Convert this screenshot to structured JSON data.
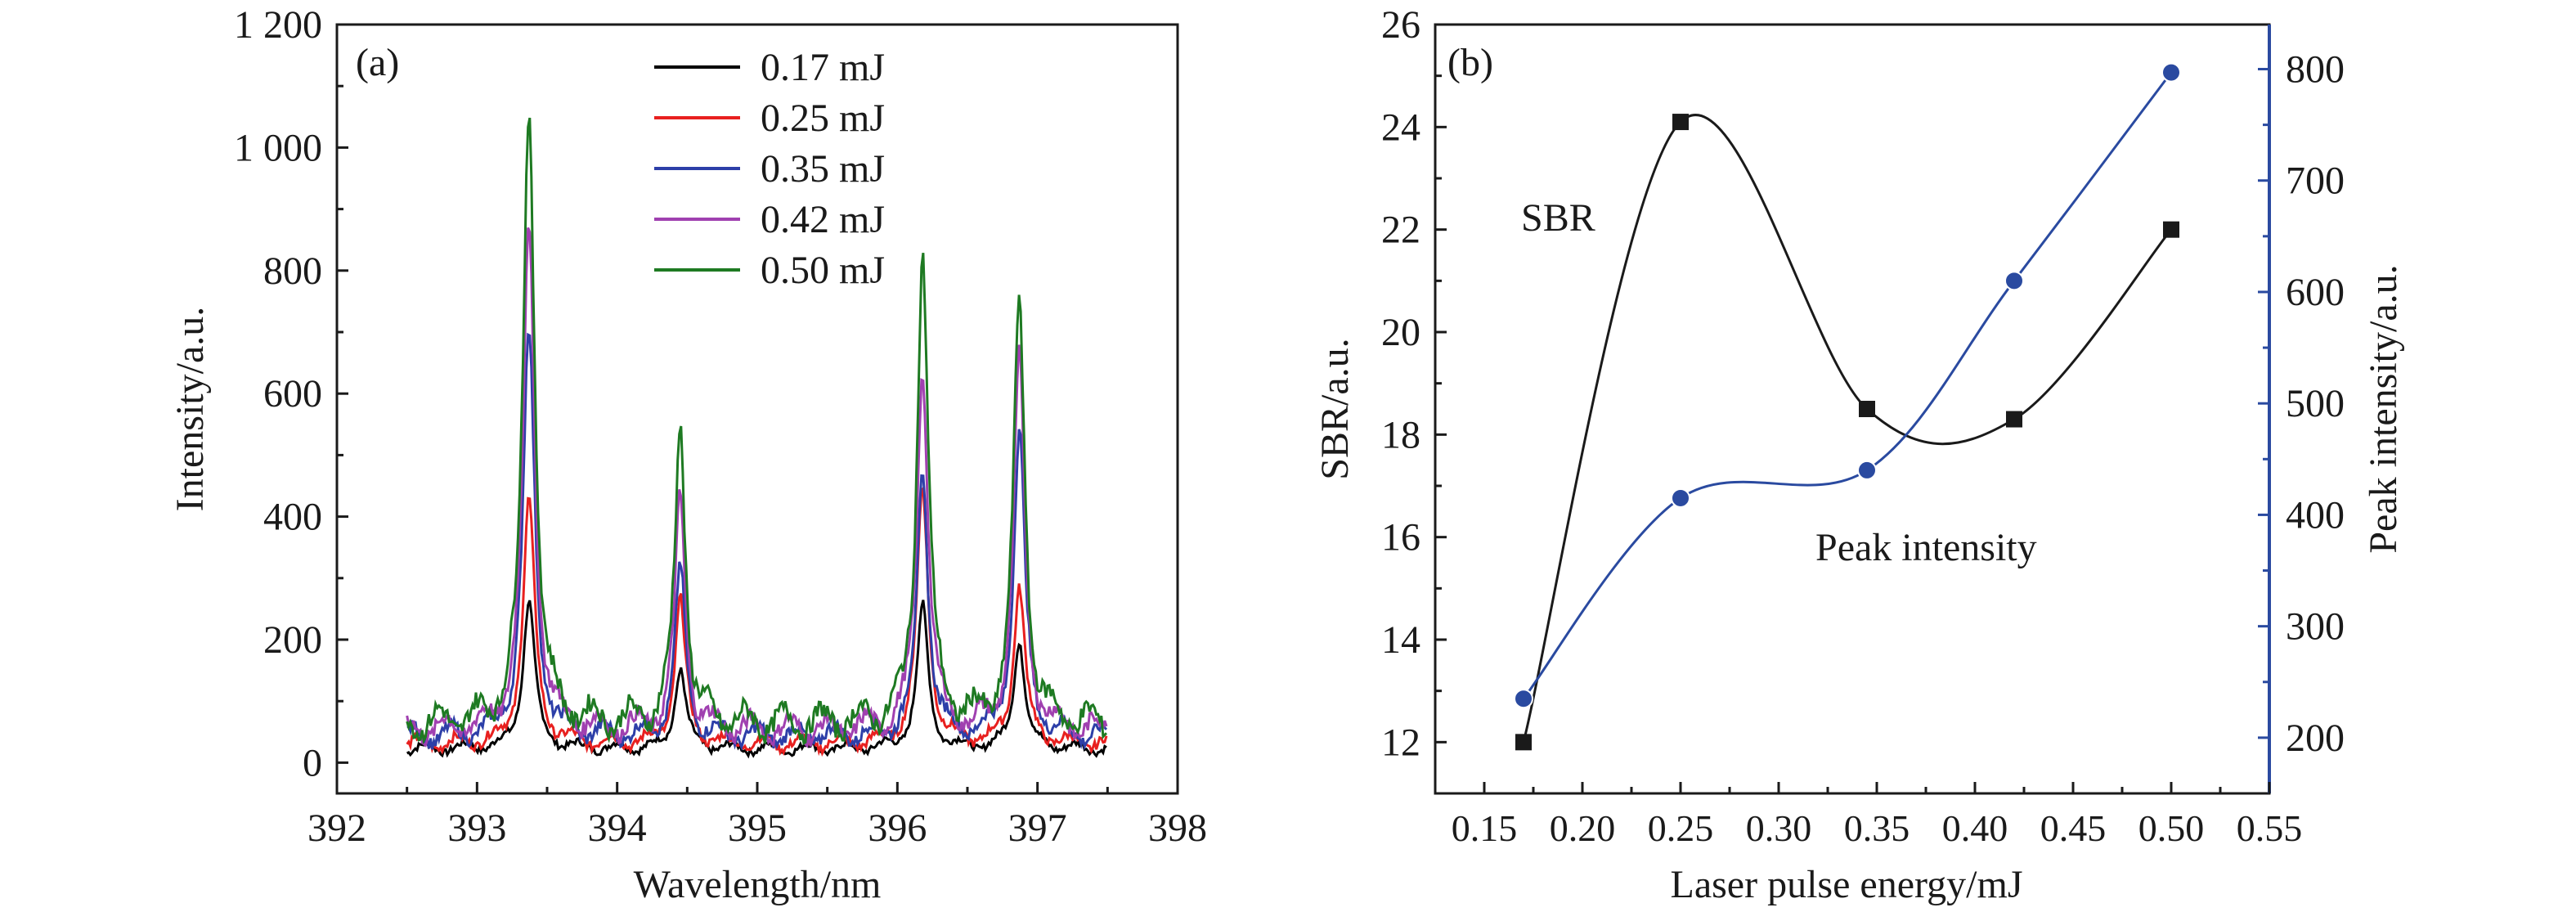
{
  "colors": {
    "axis": "#1a1a1a",
    "sbr": "#1a1a1a",
    "peak": "#2a4aa0",
    "right_axis": "#2a4aa0"
  },
  "chart_data": [
    {
      "type": "line",
      "panel_label": "(a)",
      "xlabel": "Wavelength/nm",
      "ylabel": "Intensity/a.u.",
      "xlim": [
        392,
        398
      ],
      "ylim": [
        -50,
        1200
      ],
      "xticks": [
        {
          "value": 392,
          "label": "392"
        },
        {
          "value": 393,
          "label": "393"
        },
        {
          "value": 394,
          "label": "394"
        },
        {
          "value": 395,
          "label": "395"
        },
        {
          "value": 396,
          "label": "396"
        },
        {
          "value": 397,
          "label": "397"
        },
        {
          "value": 398,
          "label": "398"
        }
      ],
      "yticks": [
        {
          "value": 0,
          "label": "0"
        },
        {
          "value": 200,
          "label": "200"
        },
        {
          "value": 400,
          "label": "400"
        },
        {
          "value": 600,
          "label": "600"
        },
        {
          "value": 800,
          "label": "800"
        },
        {
          "value": 1000,
          "label": "1 000"
        },
        {
          "value": 1200,
          "label": "1 200"
        }
      ],
      "legend_position": "top-center",
      "x_range": [
        392.5,
        397.5
      ],
      "peak_positions_nm": [
        393.37,
        394.45,
        396.18,
        396.87
      ],
      "series": [
        {
          "name": "0.17 mJ",
          "color": "#000000",
          "baseline": 22,
          "peaks": [
            265,
            155,
            252,
            198
          ]
        },
        {
          "name": "0.25 mJ",
          "color": "#e8201f",
          "baseline": 30,
          "peaks": [
            425,
            265,
            445,
            288
          ]
        },
        {
          "name": "0.35 mJ",
          "color": "#2d3fa8",
          "baseline": 42,
          "peaks": [
            698,
            312,
            468,
            535
          ]
        },
        {
          "name": "0.42 mJ",
          "color": "#a040b0",
          "baseline": 52,
          "peaks": [
            878,
            425,
            645,
            648
          ]
        },
        {
          "name": "0.50 mJ",
          "color": "#1e7a22",
          "baseline": 62,
          "peaks": [
            1070,
            550,
            833,
            750
          ]
        }
      ]
    },
    {
      "type": "line",
      "panel_label": "(b)",
      "xlabel": "Laser pulse energy/mJ",
      "ylabel": "SBR/a.u.",
      "ylabel_right": "Peak intensity/a.u.",
      "xlim": [
        0.125,
        0.55
      ],
      "ylim": [
        11.0,
        26.0
      ],
      "ylim_right": [
        150,
        840
      ],
      "xticks": [
        {
          "value": 0.15,
          "label": "0.15"
        },
        {
          "value": 0.2,
          "label": "0.20"
        },
        {
          "value": 0.25,
          "label": "0.25"
        },
        {
          "value": 0.3,
          "label": "0.30"
        },
        {
          "value": 0.35,
          "label": "0.35"
        },
        {
          "value": 0.4,
          "label": "0.40"
        },
        {
          "value": 0.45,
          "label": "0.45"
        },
        {
          "value": 0.5,
          "label": "0.50"
        },
        {
          "value": 0.55,
          "label": "0.55"
        }
      ],
      "yticks": [
        {
          "value": 12,
          "label": "12"
        },
        {
          "value": 14,
          "label": "14"
        },
        {
          "value": 16,
          "label": "16"
        },
        {
          "value": 18,
          "label": "18"
        },
        {
          "value": 20,
          "label": "20"
        },
        {
          "value": 22,
          "label": "22"
        },
        {
          "value": 24,
          "label": "24"
        },
        {
          "value": 26,
          "label": "26"
        }
      ],
      "yticks_right": [
        {
          "value": 200,
          "label": "200"
        },
        {
          "value": 300,
          "label": "300"
        },
        {
          "value": 400,
          "label": "400"
        },
        {
          "value": 500,
          "label": "500"
        },
        {
          "value": 600,
          "label": "600"
        },
        {
          "value": 700,
          "label": "700"
        },
        {
          "value": 800,
          "label": "800"
        }
      ],
      "series": [
        {
          "name": "SBR",
          "axis": "left",
          "marker": "square",
          "color": "#1a1a1a",
          "x": [
            0.17,
            0.25,
            0.345,
            0.42,
            0.5
          ],
          "y": [
            12.0,
            24.1,
            18.5,
            18.3,
            22.0
          ]
        },
        {
          "name": "Peak intensity",
          "axis": "right",
          "marker": "circle",
          "color": "#2a4aa0",
          "x": [
            0.17,
            0.25,
            0.345,
            0.42,
            0.5
          ],
          "y": [
            235,
            415,
            440,
            610,
            797
          ]
        }
      ]
    }
  ]
}
